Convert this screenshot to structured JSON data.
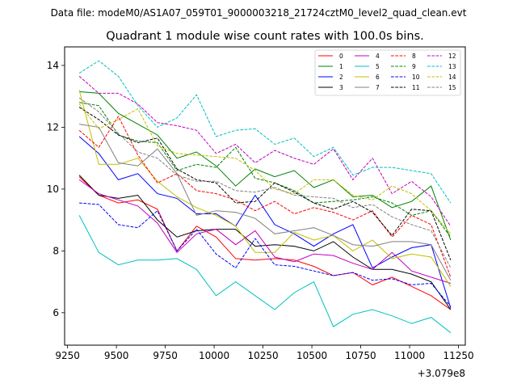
{
  "suptitle": "Data file: modeM0/AS1A07_059T01_9000003218_21724cztM0_level2_quad_clean.evt",
  "chart_data": {
    "type": "line",
    "title": "Quadrant 1 module wise count rates with 100.0s bins.",
    "xlabel": "",
    "ylabel": "",
    "x_offset_label": "+3.079e8",
    "xlim": [
      9235,
      11285
    ],
    "ylim": [
      4.95,
      14.6
    ],
    "xticks": [
      9250,
      9500,
      9750,
      10000,
      10250,
      10500,
      10750,
      11000,
      11250
    ],
    "yticks": [
      6,
      8,
      10,
      12,
      14
    ],
    "grid": false,
    "legend_position": "top-right",
    "x": [
      9310,
      9410,
      9510,
      9610,
      9710,
      9810,
      9910,
      10010,
      10110,
      10210,
      10310,
      10410,
      10510,
      10610,
      10710,
      10810,
      10910,
      11010,
      11110,
      11210
    ],
    "series": [
      {
        "name": "0",
        "color": "#ff0000",
        "dash": false,
        "values": [
          10.4,
          9.8,
          9.55,
          9.65,
          9.35,
          8.0,
          8.8,
          8.45,
          7.75,
          7.7,
          7.75,
          7.7,
          7.5,
          7.2,
          7.3,
          6.9,
          7.15,
          6.85,
          6.55,
          6.1
        ]
      },
      {
        "name": "1",
        "color": "#008000",
        "dash": false,
        "values": [
          13.15,
          13.1,
          12.45,
          12.1,
          11.75,
          11.0,
          11.2,
          10.75,
          10.1,
          10.65,
          10.4,
          10.6,
          10.05,
          10.3,
          9.75,
          9.8,
          9.4,
          9.6,
          10.1,
          8.35
        ]
      },
      {
        "name": "2",
        "color": "#0000ff",
        "dash": false,
        "values": [
          11.7,
          11.15,
          10.3,
          10.5,
          9.85,
          9.7,
          9.2,
          9.2,
          8.8,
          9.8,
          8.85,
          8.55,
          8.15,
          8.55,
          8.85,
          7.45,
          7.8,
          8.1,
          8.2,
          6.15
        ]
      },
      {
        "name": "3",
        "color": "#000000",
        "dash": false,
        "values": [
          10.45,
          9.8,
          9.7,
          9.8,
          9.0,
          8.45,
          8.65,
          8.7,
          8.7,
          8.15,
          8.2,
          8.15,
          8.0,
          8.3,
          7.8,
          7.4,
          7.4,
          7.25,
          7.0,
          6.1
        ]
      },
      {
        "name": "4",
        "color": "#c000c0",
        "dash": false,
        "values": [
          10.3,
          9.85,
          9.65,
          9.45,
          8.9,
          7.95,
          8.55,
          8.7,
          8.2,
          8.65,
          7.8,
          7.65,
          7.9,
          7.85,
          7.6,
          7.4,
          7.95,
          7.35,
          7.15,
          6.95
        ]
      },
      {
        "name": "5",
        "color": "#00c0c0",
        "dash": false,
        "values": [
          9.15,
          7.95,
          7.55,
          7.7,
          7.7,
          7.75,
          7.4,
          6.55,
          7.0,
          6.55,
          6.1,
          6.65,
          7.0,
          5.55,
          5.95,
          6.1,
          5.9,
          5.65,
          5.85,
          5.35
        ]
      },
      {
        "name": "6",
        "color": "#c0c000",
        "dash": false,
        "values": [
          13.2,
          10.8,
          10.8,
          11.0,
          10.25,
          9.75,
          9.4,
          9.15,
          8.8,
          7.95,
          7.95,
          8.6,
          8.35,
          8.5,
          8.0,
          8.35,
          7.75,
          7.9,
          7.8,
          6.85
        ]
      },
      {
        "name": "7",
        "color": "#808080",
        "dash": false,
        "values": [
          12.1,
          12.0,
          10.85,
          10.75,
          11.3,
          10.5,
          9.15,
          9.3,
          9.25,
          9.05,
          8.55,
          8.65,
          8.75,
          8.5,
          8.2,
          8.15,
          8.3,
          8.3,
          8.2,
          7.05
        ]
      },
      {
        "name": "8",
        "color": "#ff0000",
        "dash": true,
        "values": [
          11.9,
          11.35,
          12.35,
          11.1,
          10.2,
          10.5,
          9.95,
          9.85,
          9.65,
          9.3,
          9.6,
          9.2,
          9.4,
          9.25,
          9.0,
          9.3,
          8.45,
          9.15,
          8.85,
          7.15
        ]
      },
      {
        "name": "9",
        "color": "#008000",
        "dash": true,
        "values": [
          12.8,
          12.7,
          11.75,
          11.55,
          11.5,
          10.6,
          10.8,
          10.7,
          11.35,
          10.35,
          10.2,
          9.95,
          9.55,
          9.6,
          9.65,
          9.75,
          9.55,
          9.15,
          9.3,
          8.45
        ]
      },
      {
        "name": "10",
        "color": "#0000ff",
        "dash": true,
        "values": [
          9.55,
          9.5,
          8.85,
          8.75,
          9.3,
          8.0,
          8.7,
          7.9,
          7.45,
          8.4,
          7.55,
          7.5,
          7.35,
          7.2,
          7.3,
          7.05,
          7.1,
          6.9,
          6.95,
          6.2
        ]
      },
      {
        "name": "11",
        "color": "#000000",
        "dash": true,
        "values": [
          12.65,
          12.25,
          11.75,
          11.5,
          11.65,
          10.65,
          10.3,
          10.2,
          9.55,
          9.6,
          10.2,
          9.9,
          9.55,
          9.35,
          9.6,
          9.25,
          8.5,
          9.35,
          9.3,
          7.7
        ]
      },
      {
        "name": "12",
        "color": "#c000c0",
        "dash": true,
        "values": [
          13.65,
          13.1,
          13.1,
          12.75,
          12.15,
          12.05,
          11.9,
          11.15,
          11.45,
          10.85,
          11.25,
          11.0,
          10.8,
          11.3,
          10.3,
          11.0,
          9.85,
          10.25,
          9.75,
          8.8
        ]
      },
      {
        "name": "13",
        "color": "#00c0c0",
        "dash": true,
        "values": [
          13.75,
          14.15,
          13.65,
          12.7,
          12.0,
          12.3,
          13.05,
          11.7,
          11.9,
          11.95,
          11.45,
          11.65,
          11.05,
          11.35,
          10.45,
          10.7,
          10.7,
          10.6,
          10.5,
          9.55
        ]
      },
      {
        "name": "14",
        "color": "#c0c000",
        "dash": true,
        "values": [
          12.75,
          11.95,
          12.25,
          12.6,
          11.4,
          11.15,
          11.1,
          11.05,
          11.0,
          10.6,
          10.0,
          9.85,
          10.3,
          10.3,
          9.8,
          9.65,
          10.1,
          9.85,
          9.3,
          8.55
        ]
      },
      {
        "name": "15",
        "color": "#808080",
        "dash": true,
        "values": [
          12.95,
          12.5,
          11.8,
          11.2,
          11.0,
          10.45,
          10.25,
          10.25,
          9.95,
          9.9,
          10.05,
          9.8,
          9.75,
          9.7,
          9.4,
          9.5,
          9.1,
          8.85,
          8.65,
          7.45
        ]
      }
    ]
  }
}
